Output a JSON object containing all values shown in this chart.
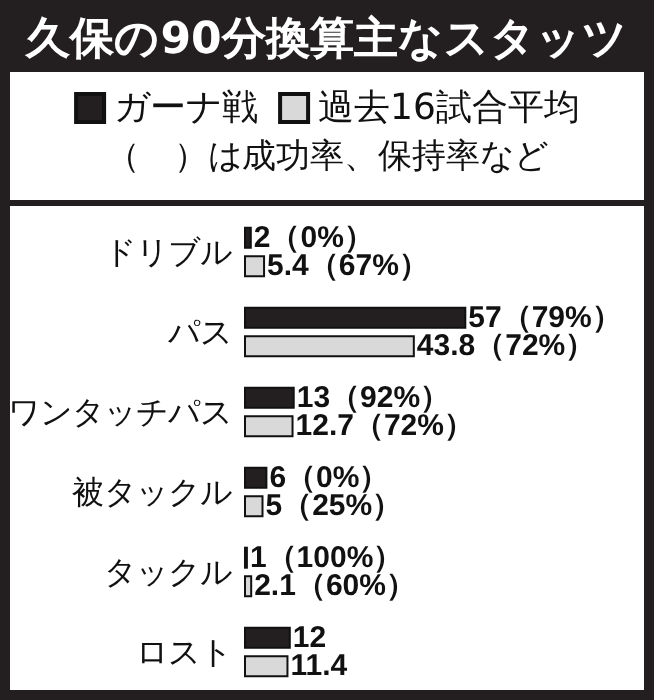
{
  "chart_data": {
    "type": "bar",
    "orientation": "horizontal",
    "title": "久保の90分換算主なスタッツ",
    "annotations": [
      "（　）は成功率、保持率など"
    ],
    "categories": [
      "ドリブル",
      "パス",
      "ワンタッチパス",
      "被タックル",
      "タックル",
      "ロスト"
    ],
    "series": [
      {
        "name": "ガーナ戦",
        "color": "#231f20",
        "values": [
          2,
          57,
          13,
          6,
          1,
          12
        ],
        "value_labels": [
          "2（0%）",
          "57（79%）",
          "13（92%）",
          "6（0%）",
          "1（100%）",
          "12"
        ]
      },
      {
        "name": "過去16試合平均",
        "color": "#d9d9d9",
        "values": [
          5.4,
          43.8,
          12.7,
          5,
          2.1,
          11.4
        ],
        "value_labels": [
          "5.4（67%）",
          "43.8（72%）",
          "12.7（72%）",
          "5（25%）",
          "2.1（60%）",
          "11.4"
        ]
      }
    ],
    "legend": "top"
  }
}
